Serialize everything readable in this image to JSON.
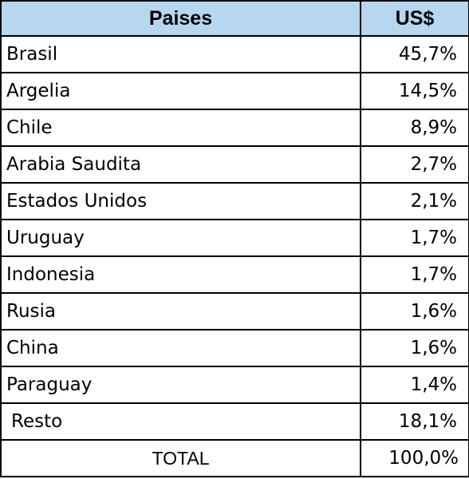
{
  "table": {
    "headers": [
      "Paises",
      "US$"
    ],
    "rows": [
      {
        "country": "Brasil",
        "value": "45,7%"
      },
      {
        "country": "Argelia",
        "value": "14,5%"
      },
      {
        "country": "Chile",
        "value": "8,9%"
      },
      {
        "country": "Arabia Saudita",
        "value": "2,7%"
      },
      {
        "country": "Estados Unidos",
        "value": "2,1%"
      },
      {
        "country": "Uruguay",
        "value": "1,7%"
      },
      {
        "country": "Indonesia",
        "value": "1,7%"
      },
      {
        "country": "Rusia",
        "value": "1,6%"
      },
      {
        "country": "China",
        "value": "1,6%"
      },
      {
        "country": "Paraguay",
        "value": "1,4%"
      },
      {
        "country": "Resto",
        "value": "18,1%"
      }
    ],
    "total": {
      "label": "TOTAL",
      "value": "100,0%"
    },
    "header_color": "#b7d6f0"
  }
}
